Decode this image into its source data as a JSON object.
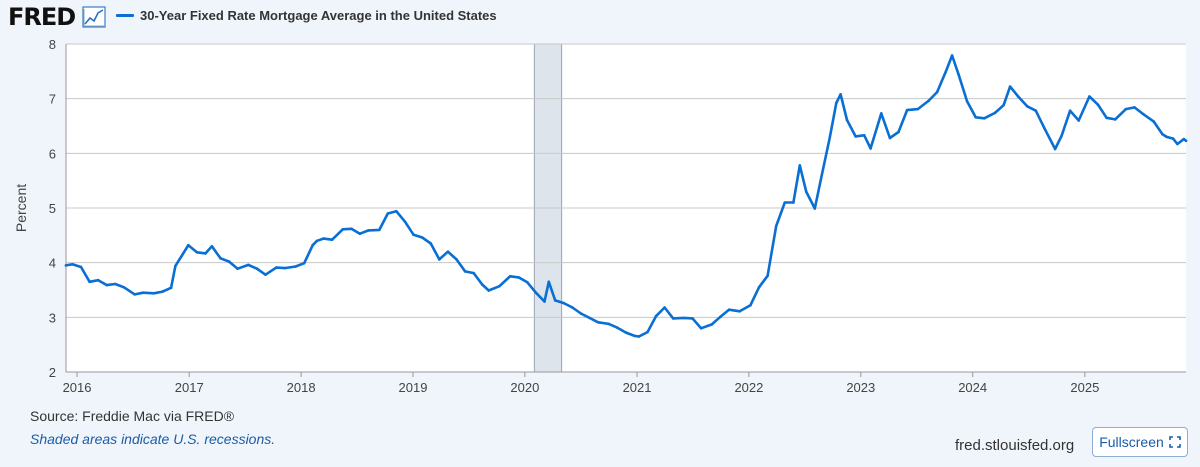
{
  "header": {
    "logo": "FRED",
    "icon": "line-chart-icon",
    "series_label": "30-Year Fixed Rate Mortgage Average in the United States"
  },
  "footer": {
    "source": "Source: Freddie Mac via FRED®",
    "recession_note": "Shaded areas indicate U.S. recessions.",
    "site": "fred.stlouisfed.org",
    "fullscreen_label": "Fullscreen",
    "fullscreen_icon": "expand-icon"
  },
  "colors": {
    "series": "#0a6fd4",
    "recession": "#dde4ec",
    "grid": "#c8c8c8",
    "background": "#f0f5fb",
    "plot": "#ffffff"
  },
  "chart_data": {
    "type": "line",
    "title": "30-Year Fixed Rate Mortgage Average in the United States",
    "xlabel": "",
    "ylabel": "Percent",
    "ylim": [
      2,
      8
    ],
    "xlim": [
      "2015-11-26",
      "2025-11-27"
    ],
    "yticks": [
      "2",
      "3",
      "4",
      "5",
      "6",
      "7",
      "8"
    ],
    "xticks": [
      "2016",
      "2017",
      "2018",
      "2019",
      "2020",
      "2021",
      "2022",
      "2023",
      "2024",
      "2025"
    ],
    "grid": true,
    "recessions": [
      {
        "start": "2020-02-01",
        "end": "2020-04-30"
      }
    ],
    "series": [
      {
        "name": "30-Year Fixed Rate Mortgage Average in the United States",
        "x": [
          "2015-11-26",
          "2015-12-17",
          "2016-01-14",
          "2016-02-11",
          "2016-03-10",
          "2016-04-07",
          "2016-05-05",
          "2016-06-02",
          "2016-07-07",
          "2016-08-04",
          "2016-09-08",
          "2016-10-06",
          "2016-11-03",
          "2016-11-17",
          "2016-12-08",
          "2016-12-29",
          "2017-01-26",
          "2017-02-23",
          "2017-03-16",
          "2017-04-13",
          "2017-05-11",
          "2017-06-08",
          "2017-07-13",
          "2017-08-10",
          "2017-09-07",
          "2017-10-12",
          "2017-11-09",
          "2017-12-14",
          "2018-01-11",
          "2018-02-08",
          "2018-02-22",
          "2018-03-15",
          "2018-04-12",
          "2018-05-17",
          "2018-06-14",
          "2018-07-12",
          "2018-08-09",
          "2018-09-13",
          "2018-10-11",
          "2018-11-08",
          "2018-12-06",
          "2019-01-03",
          "2019-01-31",
          "2019-02-28",
          "2019-03-28",
          "2019-04-25",
          "2019-05-23",
          "2019-06-20",
          "2019-07-18",
          "2019-08-15",
          "2019-09-05",
          "2019-10-10",
          "2019-11-14",
          "2019-12-12",
          "2020-01-09",
          "2020-02-06",
          "2020-03-05",
          "2020-03-19",
          "2020-04-09",
          "2020-05-07",
          "2020-06-04",
          "2020-07-02",
          "2020-07-30",
          "2020-08-27",
          "2020-10-01",
          "2020-10-29",
          "2020-11-26",
          "2020-12-24",
          "2021-01-07",
          "2021-02-04",
          "2021-03-04",
          "2021-04-01",
          "2021-04-29",
          "2021-06-03",
          "2021-07-01",
          "2021-07-29",
          "2021-09-02",
          "2021-09-30",
          "2021-10-28",
          "2021-12-02",
          "2022-01-06",
          "2022-02-03",
          "2022-03-03",
          "2022-03-31",
          "2022-04-28",
          "2022-05-26",
          "2022-06-16",
          "2022-07-07",
          "2022-08-04",
          "2022-08-25",
          "2022-09-22",
          "2022-10-13",
          "2022-10-27",
          "2022-11-17",
          "2022-12-15",
          "2023-01-12",
          "2023-02-02",
          "2023-03-09",
          "2023-04-06",
          "2023-05-04",
          "2023-06-01",
          "2023-07-06",
          "2023-08-10",
          "2023-09-07",
          "2023-10-05",
          "2023-10-26",
          "2023-11-16",
          "2023-12-14",
          "2024-01-11",
          "2024-02-08",
          "2024-03-14",
          "2024-04-11",
          "2024-05-02",
          "2024-05-30",
          "2024-06-27",
          "2024-07-25",
          "2024-08-22",
          "2024-09-26",
          "2024-10-17",
          "2024-11-14",
          "2024-12-12",
          "2025-01-16",
          "2025-02-13",
          "2025-03-13",
          "2025-04-10",
          "2025-05-15",
          "2025-06-12",
          "2025-07-10",
          "2025-08-14",
          "2025-09-11",
          "2025-09-25",
          "2025-10-16",
          "2025-10-30",
          "2025-11-20",
          "2025-11-27"
        ],
        "values": [
          3.95,
          3.97,
          3.92,
          3.65,
          3.68,
          3.59,
          3.61,
          3.55,
          3.42,
          3.45,
          3.44,
          3.47,
          3.54,
          3.94,
          4.13,
          4.32,
          4.19,
          4.17,
          4.3,
          4.08,
          4.02,
          3.89,
          3.96,
          3.89,
          3.78,
          3.91,
          3.9,
          3.93,
          3.99,
          4.32,
          4.4,
          4.44,
          4.42,
          4.61,
          4.62,
          4.53,
          4.59,
          4.6,
          4.9,
          4.94,
          4.75,
          4.51,
          4.46,
          4.35,
          4.06,
          4.2,
          4.06,
          3.84,
          3.81,
          3.6,
          3.49,
          3.57,
          3.75,
          3.73,
          3.64,
          3.45,
          3.29,
          3.65,
          3.31,
          3.26,
          3.18,
          3.07,
          2.99,
          2.91,
          2.88,
          2.81,
          2.72,
          2.66,
          2.65,
          2.73,
          3.02,
          3.18,
          2.98,
          2.99,
          2.98,
          2.8,
          2.87,
          3.01,
          3.14,
          3.11,
          3.22,
          3.55,
          3.76,
          4.67,
          5.1,
          5.1,
          5.78,
          5.3,
          4.99,
          5.55,
          6.29,
          6.92,
          7.08,
          6.61,
          6.31,
          6.33,
          6.09,
          6.73,
          6.28,
          6.39,
          6.79,
          6.81,
          6.96,
          7.12,
          7.49,
          7.79,
          7.44,
          6.95,
          6.66,
          6.64,
          6.74,
          6.88,
          7.22,
          7.03,
          6.86,
          6.78,
          6.46,
          6.08,
          6.32,
          6.78,
          6.6,
          7.04,
          6.89,
          6.65,
          6.62,
          6.81,
          6.84,
          6.72,
          6.58,
          6.35,
          6.3,
          6.27,
          6.17,
          6.26,
          6.23
        ]
      }
    ]
  }
}
